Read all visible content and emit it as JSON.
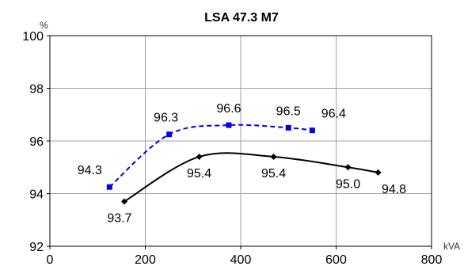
{
  "chart_data": {
    "type": "line",
    "title": "LSA 47.3 M7",
    "y_unit": "%",
    "x_unit": "kVA",
    "xlim": [
      0,
      800
    ],
    "ylim": [
      92,
      100
    ],
    "x_ticks": [
      "0",
      "200",
      "400",
      "600",
      "800"
    ],
    "y_ticks": [
      "92",
      "94",
      "96",
      "98",
      "100"
    ],
    "grid": true,
    "legend": "none",
    "series": [
      {
        "style": "dashed",
        "color": "#0000ee",
        "marker": "square",
        "points": [
          {
            "x": 125,
            "y": 94.25,
            "label": "94.3"
          },
          {
            "x": 250,
            "y": 96.25,
            "label": "96.3"
          },
          {
            "x": 375,
            "y": 96.6,
            "label": "96.6"
          },
          {
            "x": 500,
            "y": 96.5,
            "label": "96.5"
          },
          {
            "x": 550,
            "y": 96.4,
            "label": "96.4"
          }
        ]
      },
      {
        "style": "solid",
        "color": "#000000",
        "marker": "diamond",
        "points": [
          {
            "x": 156,
            "y": 93.7,
            "label": "93.7"
          },
          {
            "x": 313,
            "y": 95.4,
            "label": "95.4"
          },
          {
            "x": 469,
            "y": 95.4,
            "label": "95.4"
          },
          {
            "x": 625,
            "y": 95.0,
            "label": "95.0"
          },
          {
            "x": 688,
            "y": 94.8,
            "label": "94.8"
          }
        ]
      }
    ]
  }
}
